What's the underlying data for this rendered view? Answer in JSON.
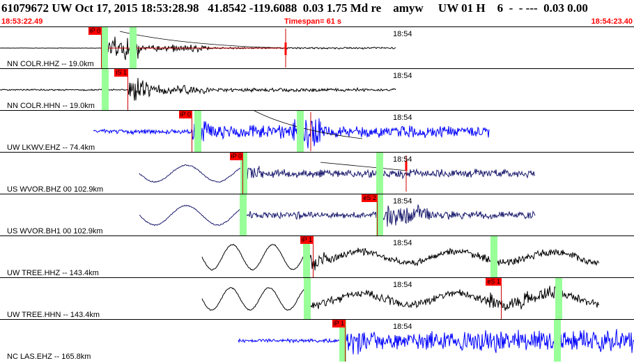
{
  "header": {
    "title": "61079672 UW Oct 17, 2015 18:53:28.98   41.8542 -119.6088  0.03 1.75 Md re    amyw     UW 01 H    6  -  - ---  0.03 0.00",
    "start_time": "18:53:22.49",
    "timespan": "Timespan=  61 s",
    "end_time": "18:54:23.40"
  },
  "colors": {
    "black_trace": "#000000",
    "blue_trace": "#0000ff",
    "navy_trace": "#1a1a6e",
    "pick_green": "#99ff99",
    "pick_red": "#ff0000"
  },
  "traces": [
    {
      "label": "NN COLR.HHZ -- 19.0km",
      "tick": "18:54",
      "pick_label": "iP 0"
    },
    {
      "label": "NN COLR.HHN -- 19.0km",
      "tick": "18:54",
      "pick_label": "iS 1"
    },
    {
      "label": "UW LKWV.EHZ -- 74.4km",
      "tick": "18:54",
      "pick_label": "iP 0"
    },
    {
      "label": "US WVOR.BHZ 00 102.9km",
      "tick": "18:54",
      "pick_label": "iP 0"
    },
    {
      "label": "US WVOR.BH1 00 102.9km",
      "tick": "18:54",
      "pick_label": "eS 2"
    },
    {
      "label": "UW TREE.HHZ -- 143.4km",
      "tick": "18:54",
      "pick_label": "iP 1"
    },
    {
      "label": "UW TREE.HHN -- 143.4km",
      "tick": "18:54",
      "pick_label": "eS 1"
    },
    {
      "label": "NC LAS.EHZ -- 165.8km",
      "tick": "18:54",
      "pick_label": "iP 1"
    }
  ]
}
